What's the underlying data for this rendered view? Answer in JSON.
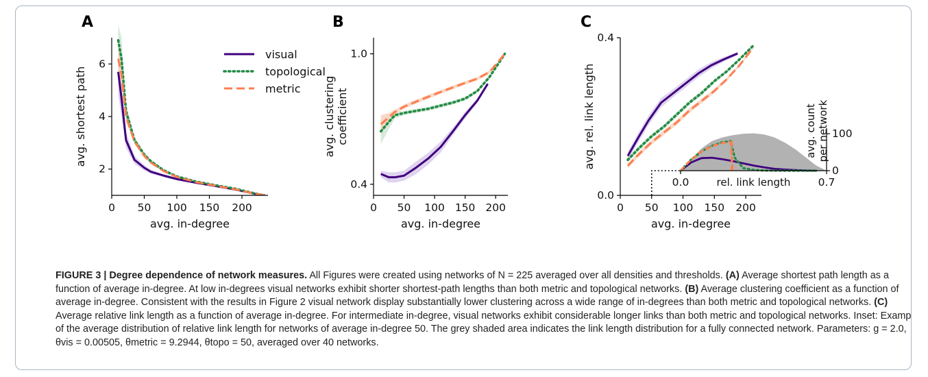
{
  "colors": {
    "visual": "#3f007d",
    "visual_band": "#d9ccec",
    "topological": "#238b45",
    "topological_band": "#cfe6d4",
    "metric": "#fc7f4e",
    "metric_band": "#f8d2c0",
    "inset_hist": "#aaaaaa",
    "text": "#222222",
    "frame": "#aab4bf"
  },
  "chart_data": [
    {
      "panel": "A",
      "type": "line",
      "title": "",
      "xlabel": "avg. in-degree",
      "ylabel": "avg. shortest path",
      "xlim": [
        0,
        240
      ],
      "ylim": [
        1,
        7
      ],
      "xticks": [
        0,
        50,
        100,
        150,
        200
      ],
      "yticks": [
        2,
        4,
        6
      ],
      "grid": false,
      "legend": {
        "placement": "top-right",
        "entries": [
          "visual",
          "topological",
          "metric"
        ]
      },
      "series": [
        {
          "name": "visual",
          "style": "solid",
          "x": [
            10,
            15,
            22,
            35,
            50,
            60,
            80,
            100,
            130,
            160,
            190,
            220,
            235
          ],
          "y": [
            5.7,
            4.7,
            3.1,
            2.35,
            2.05,
            1.9,
            1.75,
            1.62,
            1.48,
            1.35,
            1.22,
            1.06,
            1.0
          ],
          "band": [
            0.9,
            0.7,
            0.3,
            0.15,
            0.1,
            0.08,
            0.06,
            0.05,
            0.04,
            0.04,
            0.03,
            0.02,
            0.02
          ]
        },
        {
          "name": "topological",
          "style": "dotted",
          "x": [
            10,
            15,
            22,
            35,
            50,
            60,
            80,
            100,
            130,
            160,
            190,
            220,
            235
          ],
          "y": [
            6.9,
            6.2,
            4.2,
            3.1,
            2.55,
            2.3,
            1.95,
            1.72,
            1.52,
            1.38,
            1.25,
            1.07,
            1.0
          ],
          "band": [
            0.6,
            0.8,
            0.25,
            0.12,
            0.08,
            0.06,
            0.05,
            0.04,
            0.03,
            0.03,
            0.02,
            0.02,
            0.02
          ]
        },
        {
          "name": "metric",
          "style": "dashed",
          "x": [
            10,
            15,
            22,
            35,
            50,
            60,
            80,
            100,
            130,
            160,
            190,
            220,
            235
          ],
          "y": [
            6.2,
            5.6,
            4.0,
            3.05,
            2.5,
            2.25,
            1.92,
            1.7,
            1.5,
            1.36,
            1.23,
            1.06,
            1.0
          ],
          "band": [
            0.5,
            0.4,
            0.2,
            0.1,
            0.07,
            0.05,
            0.04,
            0.04,
            0.03,
            0.03,
            0.02,
            0.02,
            0.02
          ]
        }
      ]
    },
    {
      "panel": "B",
      "type": "line",
      "title": "",
      "xlabel": "avg. in-degree",
      "ylabel": "avg. clustering\ncoefficient",
      "yscale": "log",
      "xlim": [
        0,
        220
      ],
      "ylim": [
        0.37,
        1.12
      ],
      "xticks": [
        0,
        50,
        100,
        150,
        200
      ],
      "yticks": [
        0.4,
        1.0
      ],
      "ytick_labels": [
        "0.4",
        "1.0"
      ],
      "grid": false,
      "series": [
        {
          "name": "visual",
          "style": "solid",
          "x": [
            12,
            25,
            35,
            50,
            70,
            90,
            110,
            130,
            150,
            170,
            187
          ],
          "y": [
            0.43,
            0.42,
            0.42,
            0.425,
            0.45,
            0.48,
            0.52,
            0.58,
            0.65,
            0.72,
            0.81
          ],
          "band": [
            0.01,
            0.015,
            0.015,
            0.015,
            0.02,
            0.02,
            0.02,
            0.015,
            0.015,
            0.01,
            0.01
          ]
        },
        {
          "name": "topological",
          "style": "dotted",
          "x": [
            12,
            25,
            35,
            50,
            70,
            90,
            110,
            130,
            150,
            170,
            190,
            215
          ],
          "y": [
            0.58,
            0.62,
            0.65,
            0.66,
            0.67,
            0.68,
            0.695,
            0.71,
            0.73,
            0.77,
            0.85,
            1.0
          ],
          "band": [
            0.05,
            0.03,
            0.015,
            0.01,
            0.01,
            0.01,
            0.01,
            0.01,
            0.01,
            0.01,
            0.01,
            0.0
          ]
        },
        {
          "name": "metric",
          "style": "dashed",
          "x": [
            12,
            25,
            35,
            50,
            70,
            90,
            110,
            130,
            150,
            170,
            190,
            215
          ],
          "y": [
            0.61,
            0.64,
            0.665,
            0.69,
            0.715,
            0.74,
            0.765,
            0.79,
            0.815,
            0.84,
            0.88,
            1.0
          ],
          "band": [
            0.04,
            0.02,
            0.01,
            0.01,
            0.01,
            0.01,
            0.01,
            0.01,
            0.01,
            0.01,
            0.01,
            0.0
          ]
        }
      ]
    },
    {
      "panel": "C",
      "type": "line",
      "title": "",
      "xlabel": "avg. in-degree",
      "ylabel": "avg. rel. link length",
      "xlim": [
        0,
        225
      ],
      "ylim": [
        0.0,
        0.4
      ],
      "xticks": [
        0,
        50,
        100,
        150,
        200
      ],
      "yticks": [
        0.0,
        0.4
      ],
      "ytick_labels": [
        "0.0",
        "0.4"
      ],
      "grid": false,
      "series": [
        {
          "name": "visual",
          "style": "solid",
          "x": [
            12,
            30,
            45,
            65,
            85,
            105,
            125,
            145,
            165,
            187
          ],
          "y": [
            0.1,
            0.15,
            0.19,
            0.235,
            0.26,
            0.285,
            0.31,
            0.33,
            0.345,
            0.36
          ],
          "band": [
            0.01,
            0.012,
            0.012,
            0.012,
            0.01,
            0.01,
            0.01,
            0.008,
            0.006,
            0.004
          ]
        },
        {
          "name": "topological",
          "style": "dotted",
          "x": [
            12,
            30,
            50,
            70,
            90,
            110,
            130,
            150,
            170,
            190,
            212
          ],
          "y": [
            0.09,
            0.12,
            0.15,
            0.175,
            0.205,
            0.235,
            0.26,
            0.29,
            0.315,
            0.345,
            0.38
          ],
          "band": [
            0.006,
            0.006,
            0.006,
            0.006,
            0.006,
            0.006,
            0.006,
            0.005,
            0.004,
            0.003,
            0.002
          ]
        },
        {
          "name": "metric",
          "style": "dashed",
          "x": [
            12,
            30,
            50,
            70,
            90,
            110,
            130,
            150,
            170,
            190,
            212
          ],
          "y": [
            0.075,
            0.105,
            0.135,
            0.16,
            0.185,
            0.215,
            0.24,
            0.265,
            0.295,
            0.33,
            0.375
          ],
          "band": [
            0.006,
            0.006,
            0.006,
            0.006,
            0.006,
            0.006,
            0.006,
            0.005,
            0.004,
            0.003,
            0.002
          ]
        }
      ],
      "reference_marker": {
        "x": 50,
        "style": "dotted"
      }
    },
    {
      "panel": "C-inset",
      "type": "line",
      "title": "",
      "xlabel": "rel. link length",
      "ylabel": "avg. count\nper network",
      "yaxis_side": "right",
      "xlim": [
        0.0,
        0.7
      ],
      "ylim": [
        0,
        115
      ],
      "xticks": [
        0.0,
        0.7
      ],
      "xtick_labels": [
        "0.0",
        "0.7"
      ],
      "yticks": [
        0,
        100
      ],
      "grid": false,
      "histogram": {
        "name": "fully connected network",
        "style": "filled",
        "x": [
          0.0,
          0.05,
          0.1,
          0.15,
          0.2,
          0.25,
          0.3,
          0.35,
          0.4,
          0.45,
          0.5,
          0.55,
          0.6,
          0.65,
          0.7
        ],
        "y": [
          0,
          30,
          60,
          80,
          90,
          96,
          100,
          101,
          98,
          90,
          76,
          58,
          36,
          14,
          0
        ]
      },
      "series": [
        {
          "name": "visual",
          "style": "solid",
          "x": [
            0.0,
            0.05,
            0.1,
            0.15,
            0.2,
            0.25,
            0.3,
            0.35,
            0.4,
            0.45,
            0.5,
            0.55,
            0.6,
            0.65
          ],
          "y": [
            0,
            22,
            34,
            35,
            31,
            26,
            20,
            14,
            9,
            5,
            3,
            1.5,
            0.5,
            0
          ]
        },
        {
          "name": "topological",
          "style": "dotted",
          "x": [
            0.0,
            0.05,
            0.1,
            0.15,
            0.2,
            0.24,
            0.26,
            0.3,
            0.35,
            0.4,
            0.5,
            0.6,
            0.65
          ],
          "y": [
            0,
            30,
            52,
            67,
            77,
            80,
            35,
            7,
            2,
            0.5,
            0,
            0,
            0
          ]
        },
        {
          "name": "metric",
          "style": "dashed",
          "x": [
            0.0,
            0.05,
            0.1,
            0.15,
            0.2,
            0.24,
            0.245,
            0.25
          ],
          "y": [
            0,
            30,
            52,
            66,
            75,
            78,
            40,
            0
          ]
        }
      ],
      "cutoff_marker": {
        "x": 0.245,
        "style": "dashed",
        "series": "metric"
      }
    }
  ],
  "caption": {
    "label": "FIGURE 3 |",
    "title": "Degree dependence of network measures",
    "title_end": ".",
    "intro": " All Figures were created using networks of N = 225 averaged over all densities and thresholds. ",
    "a_ref": "(A)",
    "a_text": " Average shortest path length as a function of average in-degree. At low in-degrees visual networks exhibit shorter shortest-path lengths than both metric and topological networks. ",
    "b_ref": "(B)",
    "b_text": " Average clustering coefficient as a function of average in-degree. Consistent with the results in Figure 2 visual network display substantially lower clustering across a wide range of in-degrees than both metric and topological networks. ",
    "c_ref": "(C)",
    "c_text": " Average relative link length as a function of average in-degree. For intermediate in-degree, visual networks exhibit considerable longer links than both metric and topological networks. Inset: Example of the average distribution of relative link length for networks of average in-degree 50. The grey shaded area indicates the link length distribution for a fully connected network. Parameters: g = 2.0, θvis = 0.00505, θmetric = 9.2944, θtopo = 50, averaged over 40 networks."
  }
}
